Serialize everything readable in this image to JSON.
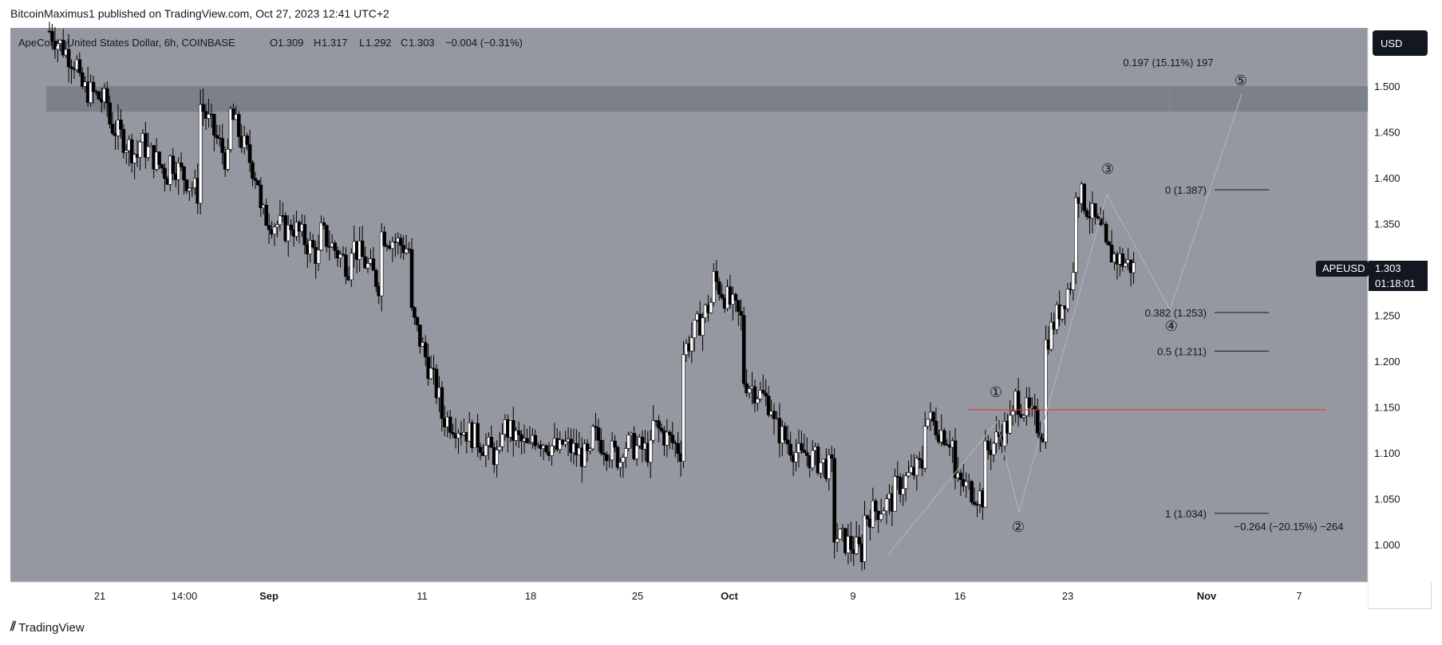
{
  "header": {
    "publisher_line": "BitcoinMaximus1 published on TradingView.com, Oct 27, 2023 12:41 UTC+2"
  },
  "footer": {
    "logo_text": "TradingView"
  },
  "legend": {
    "symbol": "ApeCoin / United States Dollar, 6h, COINBASE",
    "o_label": "O",
    "o_value": "1.309",
    "h_label": "H",
    "h_value": "1.317",
    "l_label": "L",
    "l_value": "1.292",
    "c_label": "C",
    "c_value": "1.303",
    "change": "−0.004 (−0.31%)"
  },
  "currency_button": "USD",
  "price_tag": {
    "symbol": "APEUSD",
    "price": "1.303",
    "countdown": "01:18:01"
  },
  "colors": {
    "background": "#9598a1",
    "up": "#ffffff",
    "down": "#000000",
    "resistance_zone": "#787b86",
    "red_line": "#e53935",
    "axis_bg": "#ffffff"
  },
  "chart_data": {
    "type": "candlestick",
    "ylim": [
      0.96,
      1.57
    ],
    "y_ticks": [
      "1.000",
      "1.050",
      "1.100",
      "1.150",
      "1.200",
      "1.250",
      "1.300",
      "1.350",
      "1.400",
      "1.450",
      "1.500"
    ],
    "x_ticks": [
      "21",
      "14:00",
      "Sep",
      "11",
      "18",
      "25",
      "Oct",
      "9",
      "16",
      "23",
      "Nov",
      "7"
    ],
    "x_ticks_bold": [
      "Sep",
      "Oct",
      "Nov"
    ],
    "price_path": [
      [
        1.56,
        1.52
      ],
      [
        1.5,
        1.48
      ],
      [
        1.46,
        1.42
      ],
      [
        1.44,
        1.4
      ],
      [
        1.42,
        1.38
      ],
      [
        1.48,
        1.41
      ],
      [
        1.47,
        1.39
      ],
      [
        1.36,
        1.34
      ],
      [
        1.35,
        1.31
      ],
      [
        1.34,
        1.3
      ],
      [
        1.33,
        1.28
      ],
      [
        1.34,
        1.32
      ],
      [
        1.25,
        1.15
      ],
      [
        1.14,
        1.12
      ],
      [
        1.12,
        1.09
      ],
      [
        1.13,
        1.1
      ],
      [
        1.12,
        1.1
      ],
      [
        1.11,
        1.09
      ],
      [
        1.12,
        1.09
      ],
      [
        1.11,
        1.1
      ],
      [
        1.13,
        1.1
      ],
      [
        1.21,
        1.27
      ],
      [
        1.29,
        1.24
      ],
      [
        1.18,
        1.15
      ],
      [
        1.13,
        1.09
      ],
      [
        1.1,
        1.08
      ],
      [
        1.01,
        0.99
      ],
      [
        1.03,
        1.05
      ],
      [
        1.06,
        1.09
      ],
      [
        1.14,
        1.11
      ],
      [
        1.07,
        1.05
      ],
      [
        1.1,
        1.14
      ],
      [
        1.16,
        1.12
      ],
      [
        1.22,
        1.3
      ],
      [
        1.39,
        1.33
      ],
      [
        1.32,
        1.3
      ]
    ],
    "resistance_zone": {
      "from": 1.472,
      "to": 1.5
    },
    "horizontal_level": 1.147,
    "fib_levels": [
      {
        "label": "0 (1.387)",
        "value": 1.387
      },
      {
        "label": "0.382 (1.253)",
        "value": 1.253
      },
      {
        "label": "0.5 (1.211)",
        "value": 1.211
      },
      {
        "label": "1 (1.034)",
        "value": 1.034
      }
    ],
    "wave_labels": [
      "①",
      "②",
      "③",
      "④",
      "⑤"
    ],
    "measure_up": "0.197 (15.11%) 197",
    "measure_down": "−0.264 (−20.15%) −264"
  }
}
